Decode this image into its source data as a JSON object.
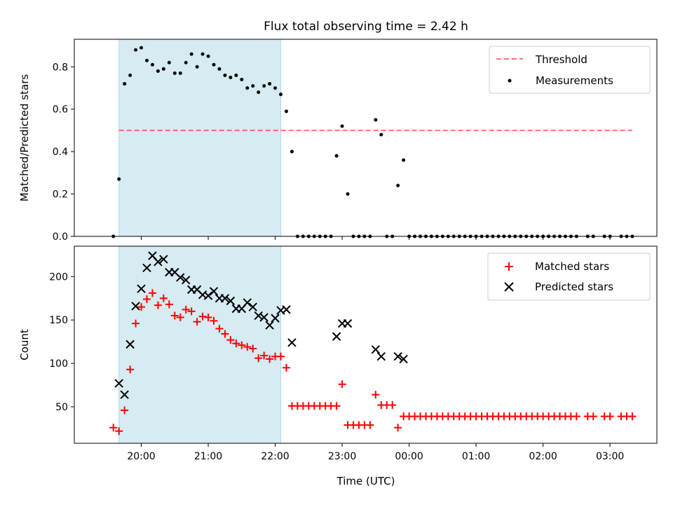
{
  "title": "Flux total observing time = 2.42 h",
  "xlabel": "Time (UTC)",
  "colors": {
    "shade": "#add8e6",
    "threshold": "#ff0000",
    "measurements": "#000000",
    "matched": "#ff0000",
    "predicted": "#000000"
  },
  "chart_data": [
    {
      "type": "scatter",
      "ylabel": "Matched/Predicted stars",
      "ylim": [
        0,
        0.93
      ],
      "yticks": [
        "0.0",
        "0.2",
        "0.4",
        "0.6",
        "0.8"
      ],
      "xlim_hours": [
        19.0,
        27.7
      ],
      "xticks": [
        "20:00",
        "21:00",
        "22:00",
        "23:00",
        "00:00",
        "01:00",
        "02:00",
        "03:00"
      ],
      "shaded_interval": [
        "19:40",
        "22:05"
      ],
      "legend_position": "upper right",
      "threshold": {
        "name": "Threshold",
        "value": 0.5,
        "x_range": [
          "19:40",
          "03:20"
        ]
      },
      "series": [
        {
          "name": "Measurements",
          "points": [
            [
              "19:35",
              0.0
            ],
            [
              "19:40",
              0.27
            ],
            [
              "19:45",
              0.72
            ],
            [
              "19:50",
              0.76
            ],
            [
              "19:55",
              0.88
            ],
            [
              "20:00",
              0.89
            ],
            [
              "20:05",
              0.83
            ],
            [
              "20:10",
              0.81
            ],
            [
              "20:15",
              0.78
            ],
            [
              "20:20",
              0.79
            ],
            [
              "20:25",
              0.82
            ],
            [
              "20:30",
              0.77
            ],
            [
              "20:35",
              0.77
            ],
            [
              "20:40",
              0.82
            ],
            [
              "20:45",
              0.86
            ],
            [
              "20:50",
              0.8
            ],
            [
              "20:55",
              0.86
            ],
            [
              "21:00",
              0.85
            ],
            [
              "21:05",
              0.81
            ],
            [
              "21:10",
              0.79
            ],
            [
              "21:15",
              0.76
            ],
            [
              "21:20",
              0.75
            ],
            [
              "21:25",
              0.76
            ],
            [
              "21:30",
              0.74
            ],
            [
              "21:35",
              0.7
            ],
            [
              "21:40",
              0.71
            ],
            [
              "21:45",
              0.68
            ],
            [
              "21:50",
              0.71
            ],
            [
              "21:55",
              0.72
            ],
            [
              "22:00",
              0.7
            ],
            [
              "22:05",
              0.67
            ],
            [
              "22:10",
              0.59
            ],
            [
              "22:15",
              0.4
            ],
            [
              "22:20",
              0.0
            ],
            [
              "22:25",
              0.0
            ],
            [
              "22:30",
              0.0
            ],
            [
              "22:35",
              0.0
            ],
            [
              "22:40",
              0.0
            ],
            [
              "22:45",
              0.0
            ],
            [
              "22:50",
              0.0
            ],
            [
              "22:55",
              0.38
            ],
            [
              "23:00",
              0.52
            ],
            [
              "23:05",
              0.2
            ],
            [
              "23:10",
              0.0
            ],
            [
              "23:15",
              0.0
            ],
            [
              "23:20",
              0.0
            ],
            [
              "23:25",
              0.0
            ],
            [
              "23:30",
              0.55
            ],
            [
              "23:35",
              0.48
            ],
            [
              "23:40",
              0.0
            ],
            [
              "23:45",
              0.0
            ],
            [
              "23:50",
              0.24
            ],
            [
              "23:55",
              0.36
            ],
            [
              "00:00",
              0.0
            ],
            [
              "00:05",
              0.0
            ],
            [
              "00:10",
              0.0
            ],
            [
              "00:15",
              0.0
            ],
            [
              "00:20",
              0.0
            ],
            [
              "00:25",
              0.0
            ],
            [
              "00:30",
              0.0
            ],
            [
              "00:35",
              0.0
            ],
            [
              "00:40",
              0.0
            ],
            [
              "00:45",
              0.0
            ],
            [
              "00:50",
              0.0
            ],
            [
              "00:55",
              0.0
            ],
            [
              "01:00",
              0.0
            ],
            [
              "01:05",
              0.0
            ],
            [
              "01:10",
              0.0
            ],
            [
              "01:15",
              0.0
            ],
            [
              "01:20",
              0.0
            ],
            [
              "01:25",
              0.0
            ],
            [
              "01:30",
              0.0
            ],
            [
              "01:35",
              0.0
            ],
            [
              "01:40",
              0.0
            ],
            [
              "01:45",
              0.0
            ],
            [
              "01:50",
              0.0
            ],
            [
              "01:55",
              0.0
            ],
            [
              "02:00",
              0.0
            ],
            [
              "02:05",
              0.0
            ],
            [
              "02:10",
              0.0
            ],
            [
              "02:15",
              0.0
            ],
            [
              "02:20",
              0.0
            ],
            [
              "02:25",
              0.0
            ],
            [
              "02:30",
              0.0
            ],
            [
              "02:40",
              0.0
            ],
            [
              "02:45",
              0.0
            ],
            [
              "02:55",
              0.0
            ],
            [
              "03:00",
              0.0
            ],
            [
              "03:10",
              0.0
            ],
            [
              "03:15",
              0.0
            ],
            [
              "03:20",
              0.0
            ]
          ]
        }
      ]
    },
    {
      "type": "scatter",
      "ylabel": "Count",
      "ylim": [
        8,
        235
      ],
      "yticks": [
        "50",
        "100",
        "150",
        "200"
      ],
      "xlim_hours": [
        19.0,
        27.7
      ],
      "xticks": [
        "20:00",
        "21:00",
        "22:00",
        "23:00",
        "00:00",
        "01:00",
        "02:00",
        "03:00"
      ],
      "shaded_interval": [
        "19:40",
        "22:05"
      ],
      "legend_position": "upper right",
      "series": [
        {
          "name": "Matched stars",
          "marker": "plus",
          "points": [
            [
              "19:35",
              26
            ],
            [
              "19:40",
              22
            ],
            [
              "19:45",
              46
            ],
            [
              "19:50",
              93
            ],
            [
              "19:55",
              146
            ],
            [
              "20:00",
              165
            ],
            [
              "20:05",
              174
            ],
            [
              "20:10",
              181
            ],
            [
              "20:15",
              167
            ],
            [
              "20:20",
              175
            ],
            [
              "20:25",
              168
            ],
            [
              "20:30",
              155
            ],
            [
              "20:35",
              153
            ],
            [
              "20:40",
              162
            ],
            [
              "20:45",
              160
            ],
            [
              "20:50",
              148
            ],
            [
              "20:55",
              154
            ],
            [
              "21:00",
              153
            ],
            [
              "21:05",
              149
            ],
            [
              "21:10",
              140
            ],
            [
              "21:15",
              134
            ],
            [
              "21:20",
              127
            ],
            [
              "21:25",
              123
            ],
            [
              "21:30",
              121
            ],
            [
              "21:35",
              119
            ],
            [
              "21:40",
              117
            ],
            [
              "21:45",
              106
            ],
            [
              "21:50",
              109
            ],
            [
              "21:55",
              105
            ],
            [
              "22:00",
              108
            ],
            [
              "22:05",
              108
            ],
            [
              "22:10",
              95
            ],
            [
              "22:15",
              51
            ],
            [
              "22:20",
              51
            ],
            [
              "22:25",
              51
            ],
            [
              "22:30",
              51
            ],
            [
              "22:35",
              51
            ],
            [
              "22:40",
              51
            ],
            [
              "22:45",
              51
            ],
            [
              "22:50",
              51
            ],
            [
              "22:55",
              51
            ],
            [
              "23:00",
              76
            ],
            [
              "23:05",
              29
            ],
            [
              "23:10",
              29
            ],
            [
              "23:15",
              29
            ],
            [
              "23:20",
              29
            ],
            [
              "23:25",
              29
            ],
            [
              "23:30",
              64
            ],
            [
              "23:35",
              52
            ],
            [
              "23:40",
              52
            ],
            [
              "23:45",
              52
            ],
            [
              "23:50",
              26
            ],
            [
              "23:55",
              39
            ],
            [
              "00:00",
              39
            ],
            [
              "00:05",
              39
            ],
            [
              "00:10",
              39
            ],
            [
              "00:15",
              39
            ],
            [
              "00:20",
              39
            ],
            [
              "00:25",
              39
            ],
            [
              "00:30",
              39
            ],
            [
              "00:35",
              39
            ],
            [
              "00:40",
              39
            ],
            [
              "00:45",
              39
            ],
            [
              "00:50",
              39
            ],
            [
              "00:55",
              39
            ],
            [
              "01:00",
              39
            ],
            [
              "01:05",
              39
            ],
            [
              "01:10",
              39
            ],
            [
              "01:15",
              39
            ],
            [
              "01:20",
              39
            ],
            [
              "01:25",
              39
            ],
            [
              "01:30",
              39
            ],
            [
              "01:35",
              39
            ],
            [
              "01:40",
              39
            ],
            [
              "01:45",
              39
            ],
            [
              "01:50",
              39
            ],
            [
              "01:55",
              39
            ],
            [
              "02:00",
              39
            ],
            [
              "02:05",
              39
            ],
            [
              "02:10",
              39
            ],
            [
              "02:15",
              39
            ],
            [
              "02:20",
              39
            ],
            [
              "02:25",
              39
            ],
            [
              "02:30",
              39
            ],
            [
              "02:40",
              39
            ],
            [
              "02:45",
              39
            ],
            [
              "02:55",
              39
            ],
            [
              "03:00",
              39
            ],
            [
              "03:10",
              39
            ],
            [
              "03:15",
              39
            ],
            [
              "03:20",
              39
            ]
          ]
        },
        {
          "name": "Predicted stars",
          "marker": "x",
          "points": [
            [
              "19:40",
              77
            ],
            [
              "19:45",
              64
            ],
            [
              "19:50",
              122
            ],
            [
              "19:55",
              166
            ],
            [
              "20:00",
              186
            ],
            [
              "20:05",
              210
            ],
            [
              "20:10",
              224
            ],
            [
              "20:15",
              217
            ],
            [
              "20:20",
              220
            ],
            [
              "20:25",
              205
            ],
            [
              "20:30",
              205
            ],
            [
              "20:35",
              199
            ],
            [
              "20:40",
              196
            ],
            [
              "20:45",
              185
            ],
            [
              "20:50",
              185
            ],
            [
              "20:55",
              179
            ],
            [
              "21:00",
              178
            ],
            [
              "21:05",
              183
            ],
            [
              "21:10",
              175
            ],
            [
              "21:15",
              175
            ],
            [
              "21:20",
              172
            ],
            [
              "21:25",
              163
            ],
            [
              "21:30",
              163
            ],
            [
              "21:35",
              170
            ],
            [
              "21:40",
              165
            ],
            [
              "21:45",
              155
            ],
            [
              "21:50",
              153
            ],
            [
              "21:55",
              144
            ],
            [
              "22:00",
              152
            ],
            [
              "22:05",
              161
            ],
            [
              "22:10",
              162
            ],
            [
              "22:15",
              124
            ],
            [
              "22:55",
              131
            ],
            [
              "23:00",
              146
            ],
            [
              "23:05",
              146
            ],
            [
              "23:30",
              116
            ],
            [
              "23:35",
              108
            ],
            [
              "23:50",
              108
            ],
            [
              "23:55",
              105
            ]
          ]
        }
      ]
    }
  ]
}
